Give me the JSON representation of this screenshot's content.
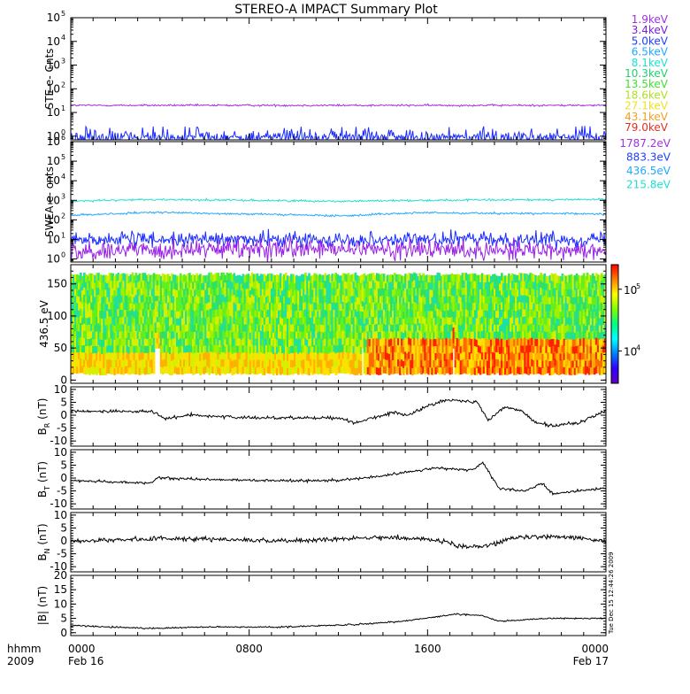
{
  "title": "STEREO-A IMPACT Summary Plot",
  "chart_data": [
    {
      "id": "ste",
      "type": "line",
      "ylabel": "STE e- Cnts",
      "yscale": "log",
      "ylim": [
        0.7,
        100000
      ],
      "tick_values": [
        1,
        10,
        100,
        1000,
        10000,
        100000
      ],
      "tick_labels": [
        {
          "base": "10",
          "exp": "0"
        },
        {
          "base": "10",
          "exp": "1"
        },
        {
          "base": "10",
          "exp": "2"
        },
        {
          "base": "10",
          "exp": "3"
        },
        {
          "base": "10",
          "exp": "4"
        },
        {
          "base": "10",
          "exp": "5"
        }
      ],
      "legend": [
        {
          "label": "1.9keV",
          "color": "#a030e0"
        },
        {
          "label": "3.4keV",
          "color": "#7a20d8"
        },
        {
          "label": "5.0keV",
          "color": "#2040ff"
        },
        {
          "label": "6.5keV",
          "color": "#20a8ff"
        },
        {
          "label": "8.1keV",
          "color": "#20e0d0"
        },
        {
          "label": "10.3keV",
          "color": "#20d070"
        },
        {
          "label": "13.5keV",
          "color": "#40e030"
        },
        {
          "label": "18.6keV",
          "color": "#b0e020"
        },
        {
          "label": "27.1keV",
          "color": "#f0e020"
        },
        {
          "label": "43.1keV",
          "color": "#f0a020"
        },
        {
          "label": "79.0keV",
          "color": "#e03020"
        }
      ],
      "series": [
        {
          "label": "1.9keV",
          "color": "#a030e0",
          "level": 20,
          "noise": 0.04
        },
        {
          "label": "5.0keV",
          "color": "#1a2cff",
          "level": 0.9,
          "noise": 0.25,
          "spiky": true
        }
      ]
    },
    {
      "id": "swea",
      "type": "line",
      "ylabel": "SWEA e- cnts",
      "yscale": "log",
      "ylim": [
        0.7,
        1000000
      ],
      "tick_values": [
        1,
        10,
        100,
        1000,
        10000,
        100000,
        1000000
      ],
      "tick_labels": [
        {
          "base": "10",
          "exp": "0"
        },
        {
          "base": "10",
          "exp": "1"
        },
        {
          "base": "10",
          "exp": "2"
        },
        {
          "base": "10",
          "exp": "3"
        },
        {
          "base": "10",
          "exp": "4"
        },
        {
          "base": "10",
          "exp": "5"
        },
        {
          "base": "10",
          "exp": "6"
        }
      ],
      "legend": [
        {
          "label": "1787.2eV",
          "color": "#a030e0"
        },
        {
          "label": "883.3eV",
          "color": "#2040ff"
        },
        {
          "label": "436.5eV",
          "color": "#20a8ff"
        },
        {
          "label": "215.8eV",
          "color": "#20e0d0"
        }
      ],
      "series": [
        {
          "label": "215.8eV",
          "color": "#20e0d0",
          "level": 900,
          "noise": 0.05,
          "trend": [
            [
              0,
              900
            ],
            [
              0.15,
              1100
            ],
            [
              0.5,
              900
            ],
            [
              0.65,
              1000
            ],
            [
              1,
              1100
            ]
          ]
        },
        {
          "label": "436.5eV",
          "color": "#20a8ff",
          "level": 200,
          "noise": 0.05,
          "trend": [
            [
              0,
              170
            ],
            [
              0.16,
              240
            ],
            [
              0.5,
              160
            ],
            [
              0.65,
              230
            ],
            [
              1,
              200
            ]
          ]
        },
        {
          "label": "883.3eV",
          "color": "#1a2cff",
          "level": 10,
          "noise": 0.35
        },
        {
          "label": "1787.2eV",
          "color": "#9a20e8",
          "level": 3,
          "noise": 0.5
        }
      ]
    },
    {
      "id": "spectrogram",
      "type": "heatmap",
      "ylabel": "436.5 eV",
      "ylim": [
        -5,
        180
      ],
      "yticks": [
        0,
        50,
        100,
        150
      ],
      "colorbar": {
        "scale": "log",
        "range": [
          3000,
          250000
        ],
        "ticks": [
          {
            "value": 10000,
            "base": "10",
            "exp": "4"
          },
          {
            "value": 100000,
            "base": "10",
            "exp": "5"
          }
        ]
      },
      "value_range": [
        8,
        168
      ]
    },
    {
      "id": "br",
      "type": "line",
      "ylabel": "B_R (nT)",
      "label_main": "B",
      "label_sub": "R",
      "label_unit": " (nT)",
      "ylim": [
        -12,
        11
      ],
      "yticks": [
        -10,
        -5,
        0,
        5,
        10
      ],
      "trend": [
        [
          0,
          1.5
        ],
        [
          0.15,
          1.5
        ],
        [
          0.18,
          -1.5
        ],
        [
          0.22,
          0.2
        ],
        [
          0.32,
          -1
        ],
        [
          0.5,
          -1
        ],
        [
          0.53,
          -3
        ],
        [
          0.6,
          1
        ],
        [
          0.63,
          0
        ],
        [
          0.66,
          3
        ],
        [
          0.7,
          6
        ],
        [
          0.76,
          5
        ],
        [
          0.78,
          -2
        ],
        [
          0.81,
          3
        ],
        [
          0.84,
          2
        ],
        [
          0.87,
          -3
        ],
        [
          0.9,
          -4
        ],
        [
          0.95,
          -3
        ],
        [
          1,
          2
        ]
      ],
      "noise": 0.6
    },
    {
      "id": "bt",
      "type": "line",
      "ylabel": "B_T (nT)",
      "label_main": "B",
      "label_sub": "T",
      "label_unit": " (nT)",
      "ylim": [
        -12,
        11
      ],
      "yticks": [
        -10,
        -5,
        0,
        5,
        10
      ],
      "trend": [
        [
          0,
          -1
        ],
        [
          0.15,
          -2
        ],
        [
          0.16,
          0
        ],
        [
          0.35,
          -1
        ],
        [
          0.48,
          -1
        ],
        [
          0.55,
          0
        ],
        [
          0.62,
          2
        ],
        [
          0.68,
          4
        ],
        [
          0.75,
          3
        ],
        [
          0.77,
          6
        ],
        [
          0.8,
          -4
        ],
        [
          0.85,
          -5
        ],
        [
          0.88,
          -2
        ],
        [
          0.9,
          -6
        ],
        [
          1,
          -4
        ]
      ],
      "noise": 0.5
    },
    {
      "id": "bn",
      "type": "line",
      "ylabel": "B_N (nT)",
      "label_main": "B",
      "label_sub": "N",
      "label_unit": " (nT)",
      "ylim": [
        -12,
        11
      ],
      "yticks": [
        -10,
        -5,
        0,
        5,
        10
      ],
      "trend": [
        [
          0,
          0
        ],
        [
          0.2,
          1
        ],
        [
          0.4,
          0
        ],
        [
          0.6,
          1.5
        ],
        [
          0.7,
          0
        ],
        [
          0.72,
          -2
        ],
        [
          0.78,
          -2
        ],
        [
          0.82,
          1
        ],
        [
          0.9,
          2
        ],
        [
          1,
          0
        ]
      ],
      "noise": 0.9
    },
    {
      "id": "bmag",
      "type": "line",
      "ylabel": "|B| (nT)",
      "ylim": [
        -1,
        20
      ],
      "yticks": [
        0,
        5,
        10,
        15,
        20
      ],
      "trend": [
        [
          0,
          2.5
        ],
        [
          0.15,
          1.5
        ],
        [
          0.25,
          2
        ],
        [
          0.4,
          2
        ],
        [
          0.55,
          3
        ],
        [
          0.62,
          4
        ],
        [
          0.68,
          5.5
        ],
        [
          0.72,
          6.5
        ],
        [
          0.77,
          6
        ],
        [
          0.8,
          4
        ],
        [
          0.9,
          5
        ],
        [
          1,
          5
        ]
      ],
      "noise": 0.25
    }
  ],
  "xaxis": {
    "tick_labels": [
      "0000",
      "0800",
      "1600",
      "0000"
    ],
    "date_labels": [
      "Feb 16",
      "",
      "",
      "Feb 17"
    ],
    "row_label": "hhmm",
    "year_label": "2009"
  },
  "timestamp": "Tue Dec 15 12:44:26 2009"
}
